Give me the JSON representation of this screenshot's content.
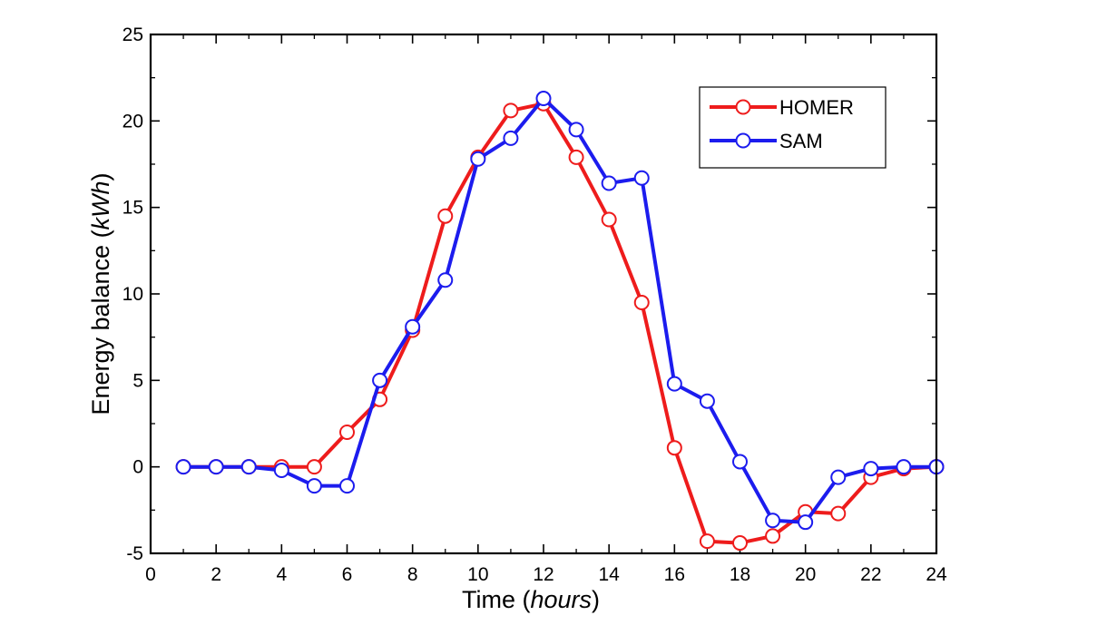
{
  "chart_data": {
    "type": "line",
    "title": "",
    "xlabel": "Time",
    "xlabel_unit": "hours",
    "ylabel": "Energy balance",
    "ylabel_unit": "kWh",
    "xlim": [
      0,
      24
    ],
    "ylim": [
      -5,
      25
    ],
    "xticks": [
      0,
      2,
      4,
      6,
      8,
      10,
      12,
      14,
      16,
      18,
      20,
      22,
      24
    ],
    "yticks": [
      -5,
      0,
      5,
      10,
      15,
      20,
      25
    ],
    "grid": false,
    "legend_position": "top-right",
    "x": [
      1,
      2,
      3,
      4,
      5,
      6,
      7,
      8,
      9,
      10,
      11,
      12,
      13,
      14,
      15,
      16,
      17,
      18,
      19,
      20,
      21,
      22,
      23,
      24
    ],
    "series": [
      {
        "name": "HOMER",
        "color": "#ee1c1c",
        "marker": "open-circle",
        "values": [
          0,
          0,
          0,
          0,
          0,
          2,
          3.9,
          7.9,
          14.5,
          17.9,
          20.6,
          21,
          17.9,
          14.3,
          9.5,
          1.1,
          -4.3,
          -4.4,
          -4,
          -2.6,
          -2.7,
          -0.6,
          -0.1,
          0
        ]
      },
      {
        "name": "SAM",
        "color": "#1c1cee",
        "marker": "open-circle",
        "values": [
          0,
          0,
          0,
          -0.2,
          -1.1,
          -1.1,
          5,
          8.1,
          10.8,
          17.8,
          19,
          21.3,
          19.5,
          16.4,
          16.7,
          4.8,
          3.8,
          0.3,
          -3.1,
          -3.2,
          -0.6,
          -0.1,
          0,
          0
        ]
      }
    ]
  }
}
